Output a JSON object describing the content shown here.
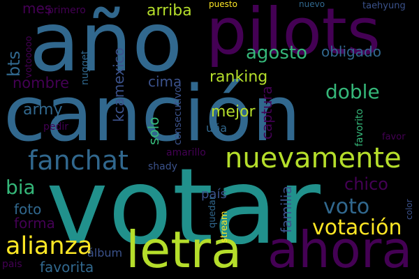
{
  "palette": {
    "background": "#000000",
    "purple_dark": "#440154",
    "indigo": "#3b528b",
    "blue": "#31688e",
    "teal": "#21918c",
    "green": "#35b779",
    "lime": "#b5de2b",
    "yellow": "#fde725"
  },
  "words": {
    "votar": "votar",
    "cancion": "canción",
    "ano": "año",
    "pilots": "pilots",
    "letra": "letra",
    "ahora": "ahora",
    "nuevamente": "nuevamente",
    "fanchat": "fanchat",
    "alianza": "alianza",
    "votacion": "votación",
    "voto": "voto",
    "agosto": "agosto",
    "doble": "doble",
    "chico": "chico",
    "ranking": "ranking",
    "arriba": "arriba",
    "bia": "bia",
    "mejor": "mejor",
    "cima": "cima",
    "nombre": "nombre",
    "army": "army",
    "foto": "foto",
    "forma": "forma",
    "favorita": "favorita",
    "obligado": "obligado",
    "captura": "captura",
    "kcamexico": "kcamexico",
    "solo": "solo",
    "bts": "bts",
    "mes": "mes",
    "primero": "primero",
    "puesto": "puesto",
    "nuevo": "nuevo",
    "taehyung": "taehyung",
    "votooooo": "votooooo",
    "nugget": "nugget",
    "consecutivo": "consecutivo",
    "favorito": "favorito",
    "favor": "favor",
    "familia": "familia",
    "pais_accent": "país",
    "pais": "pais",
    "amarillo": "amarillo",
    "shady": "shady",
    "una": "uña",
    "pedir": "pedir",
    "quedar": "quedar",
    "album": "álbum",
    "stream": "stream",
    "color": "color"
  }
}
